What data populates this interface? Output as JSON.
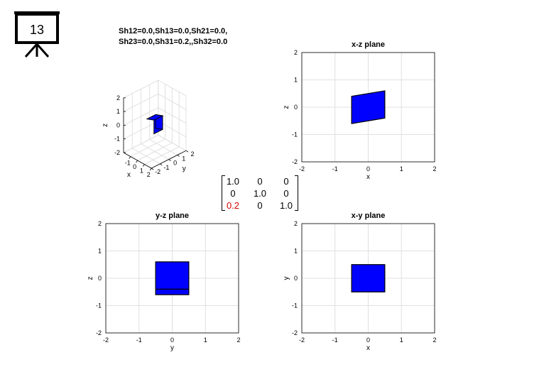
{
  "slide": {
    "number": "13",
    "icon": "presentation-board-icon"
  },
  "shear_title": {
    "line1": "Sh12=0.0,Sh13=0.0,Sh21=0.0,",
    "line2": "Sh23=0.0,Sh31=0.2,,Sh32=0.0"
  },
  "matrix": {
    "rows": [
      [
        "1.0",
        "0",
        "0"
      ],
      [
        "0",
        "1.0",
        "0"
      ],
      [
        "0.2",
        "0",
        "1.0"
      ]
    ],
    "highlight_color": "#d40000"
  },
  "colors": {
    "shape": "#0000ff",
    "edge": "#000000",
    "grid": "#e0e0e0"
  },
  "chart_data": [
    {
      "type": "3d-surface",
      "title": "",
      "xlabel": "x",
      "ylabel": "y",
      "zlabel": "z",
      "xticks": [
        "-1",
        "0",
        "1",
        "2"
      ],
      "yticks": [
        "-2",
        "-1",
        "0",
        "1",
        "2"
      ],
      "zticks": [
        "-2",
        "-1",
        "0",
        "1",
        "2"
      ],
      "xlim": [
        -2,
        2
      ],
      "ylim": [
        -2,
        2
      ],
      "zlim": [
        -2,
        2
      ],
      "grid": true,
      "cube": {
        "x": [
          -0.5,
          0.5
        ],
        "y": [
          -0.5,
          0.5
        ],
        "z": [
          -0.5,
          0.5
        ],
        "sh31": 0.2
      }
    },
    {
      "type": "polygon",
      "title": "x-z plane",
      "xlabel": "x",
      "ylabel": "z",
      "xticks": [
        "-2",
        "-1",
        "0",
        "1",
        "2"
      ],
      "yticks": [
        "-2",
        "-1",
        "0",
        "1",
        "2"
      ],
      "xlim": [
        -2,
        2
      ],
      "ylim": [
        -2,
        2
      ],
      "grid": true,
      "polygon": [
        [
          -0.5,
          -0.6
        ],
        [
          0.5,
          -0.4
        ],
        [
          0.5,
          0.6
        ],
        [
          -0.5,
          0.4
        ]
      ]
    },
    {
      "type": "polygon",
      "title": "y-z plane",
      "xlabel": "y",
      "ylabel": "z",
      "xticks": [
        "-2",
        "-1",
        "0",
        "1",
        "2"
      ],
      "yticks": [
        "-2",
        "-1",
        "0",
        "1",
        "2"
      ],
      "xlim": [
        -2,
        2
      ],
      "ylim": [
        -2,
        2
      ],
      "grid": true,
      "polygon": [
        [
          -0.5,
          -0.6
        ],
        [
          0.5,
          -0.6
        ],
        [
          0.5,
          0.6
        ],
        [
          -0.5,
          0.6
        ]
      ],
      "inner_line": [
        [
          -0.5,
          -0.4
        ],
        [
          0.5,
          -0.4
        ]
      ]
    },
    {
      "type": "polygon",
      "title": "x-y plane",
      "xlabel": "x",
      "ylabel": "y",
      "xticks": [
        "-2",
        "-1",
        "0",
        "1",
        "2"
      ],
      "yticks": [
        "-2",
        "-1",
        "0",
        "1",
        "2"
      ],
      "xlim": [
        -2,
        2
      ],
      "ylim": [
        -2,
        2
      ],
      "grid": true,
      "polygon": [
        [
          -0.5,
          -0.5
        ],
        [
          0.5,
          -0.5
        ],
        [
          0.5,
          0.5
        ],
        [
          -0.5,
          0.5
        ]
      ]
    }
  ]
}
